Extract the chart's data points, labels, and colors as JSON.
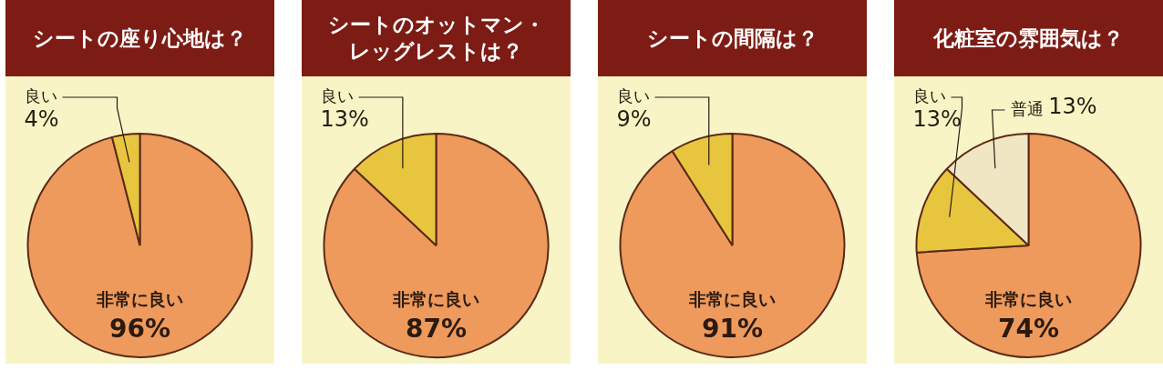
{
  "chart_data": [
    {
      "type": "pie",
      "title": "シートの座り心地は？",
      "categories": [
        "非常に良い",
        "良い"
      ],
      "values": [
        96,
        4
      ],
      "colors": [
        "#ee9a5c",
        "#e8c53e"
      ],
      "value_labels": [
        "96%",
        "4%"
      ]
    },
    {
      "type": "pie",
      "title": "シートのオットマン・レッグレストは？",
      "categories": [
        "非常に良い",
        "良い"
      ],
      "values": [
        87,
        13
      ],
      "colors": [
        "#ee9a5c",
        "#e8c53e"
      ],
      "value_labels": [
        "87%",
        "13%"
      ]
    },
    {
      "type": "pie",
      "title": "シートの間隔は？",
      "categories": [
        "非常に良い",
        "良い"
      ],
      "values": [
        91,
        9
      ],
      "colors": [
        "#ee9a5c",
        "#e8c53e"
      ],
      "value_labels": [
        "91%",
        "9%"
      ]
    },
    {
      "type": "pie",
      "title": "化粧室の雰囲気は？",
      "categories": [
        "非常に良い",
        "良い",
        "普通"
      ],
      "values": [
        74,
        13,
        13
      ],
      "colors": [
        "#ee9a5c",
        "#e8c53e",
        "#f1e6c4"
      ],
      "value_labels": [
        "74%",
        "13%",
        "13%"
      ]
    }
  ]
}
